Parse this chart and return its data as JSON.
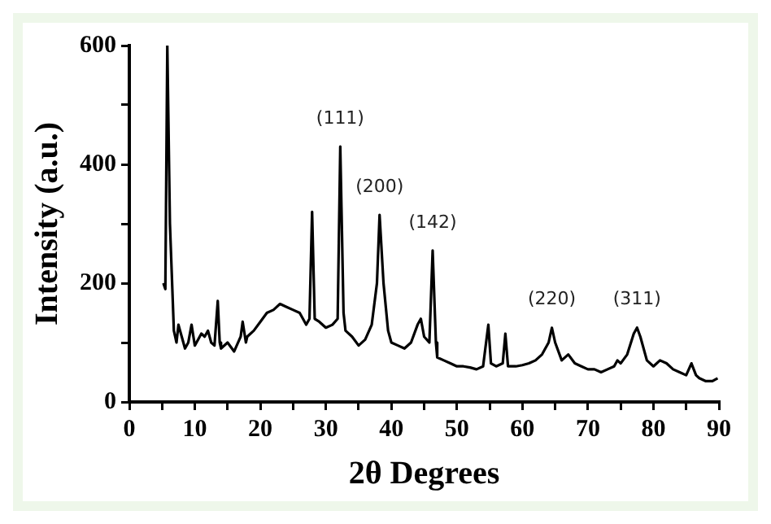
{
  "chart_data": {
    "type": "line",
    "xlabel": "2θ Degrees",
    "ylabel": "Intensity (a.u.)",
    "xlim": [
      0,
      90
    ],
    "ylim": [
      0,
      600
    ],
    "xticks": [
      0,
      {
        "value": 5,
        "label": null
      },
      10,
      {
        "value": 15,
        "label": null
      },
      20,
      {
        "value": 25,
        "label": null
      },
      30,
      {
        "value": 35,
        "label": null
      },
      40,
      {
        "value": 45,
        "label": null
      },
      50,
      {
        "value": 55,
        "label": null
      },
      60,
      {
        "value": 65,
        "label": null
      },
      70,
      {
        "value": 75,
        "label": null
      },
      80,
      {
        "value": 85,
        "label": null
      },
      90
    ],
    "yticks": [
      0,
      {
        "value": 100,
        "label": null
      },
      200,
      {
        "value": 300,
        "label": null
      },
      400,
      {
        "value": 500,
        "label": null
      },
      600
    ],
    "grid": false,
    "legend": false,
    "series": [
      {
        "color": "#000000",
        "x": [
          5.2,
          5.5,
          5.8,
          6.2,
          6.8,
          7.2,
          7.5,
          8,
          8.5,
          9,
          9.5,
          10,
          11,
          11.5,
          12,
          12.5,
          13,
          13.5,
          13.8,
          14,
          15,
          16,
          17,
          17.3,
          17.8,
          18,
          19,
          20,
          21,
          22,
          23,
          24,
          25,
          26,
          27,
          27.5,
          27.9,
          28.3,
          29,
          30,
          31,
          31.8,
          32.2,
          32.7,
          33,
          34,
          35,
          36,
          37,
          37.8,
          38.2,
          38.8,
          39.5,
          40,
          41,
          42,
          43,
          44,
          44.5,
          45,
          45.8,
          46.3,
          46.8,
          47,
          48,
          49,
          50,
          51,
          52,
          53,
          54,
          54.8,
          55.2,
          56,
          57,
          57.4,
          57.8,
          59,
          60,
          61,
          62,
          63,
          64,
          64.5,
          65,
          66,
          67,
          68,
          69,
          70,
          71,
          72,
          73,
          74,
          74.5,
          75,
          76,
          77,
          77.5,
          78,
          79,
          80,
          81,
          82,
          83,
          84,
          85,
          85.8,
          86.5,
          87,
          88,
          89,
          89.8
        ],
        "values": [
          200,
          190,
          600,
          300,
          120,
          100,
          130,
          110,
          90,
          100,
          130,
          95,
          115,
          110,
          120,
          100,
          95,
          170,
          100,
          90,
          100,
          85,
          110,
          135,
          100,
          110,
          120,
          135,
          150,
          155,
          165,
          160,
          155,
          150,
          130,
          140,
          320,
          140,
          135,
          125,
          130,
          140,
          430,
          150,
          120,
          110,
          95,
          105,
          130,
          200,
          315,
          200,
          120,
          100,
          95,
          90,
          100,
          130,
          140,
          110,
          100,
          255,
          100,
          75,
          70,
          65,
          60,
          60,
          58,
          55,
          60,
          130,
          65,
          60,
          65,
          115,
          60,
          60,
          62,
          65,
          70,
          80,
          100,
          125,
          100,
          70,
          80,
          65,
          60,
          55,
          55,
          50,
          55,
          60,
          70,
          65,
          80,
          115,
          125,
          110,
          70,
          60,
          70,
          65,
          55,
          50,
          45,
          65,
          45,
          40,
          35,
          35,
          40
        ]
      }
    ],
    "annotations": [
      {
        "text": "(111)",
        "x": 32.2,
        "y": 430
      },
      {
        "text": "(200)",
        "x": 38.2,
        "y": 315
      },
      {
        "text": "(142)",
        "x": 46.3,
        "y": 255
      },
      {
        "text": "(220)",
        "x": 64.5,
        "y": 125
      },
      {
        "text": "(311)",
        "x": 77.5,
        "y": 125
      }
    ]
  }
}
